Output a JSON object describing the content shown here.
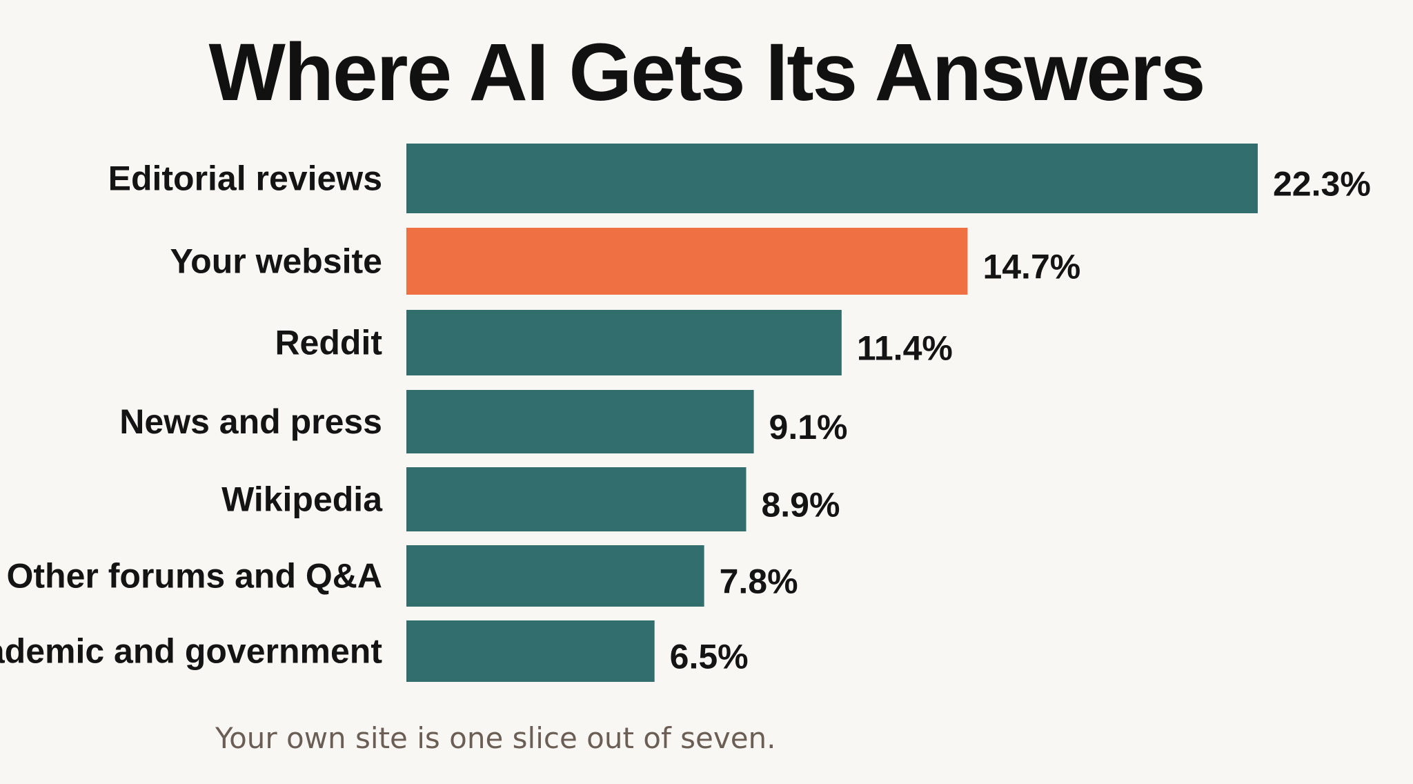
{
  "chart_data": {
    "type": "bar",
    "orientation": "horizontal",
    "title": "Where AI Gets Its Answers",
    "categories": [
      "Editorial reviews",
      "Your website",
      "Reddit",
      "News and press",
      "Wikipedia",
      "Other forums and Q&A",
      "Academic and government"
    ],
    "values": [
      22.3,
      14.7,
      11.4,
      9.1,
      8.9,
      7.8,
      6.5
    ],
    "value_labels": [
      "22.3%",
      "14.7%",
      "11.4%",
      "9.1%",
      "8.9%",
      "7.8%",
      "6.5%"
    ],
    "unit": "%",
    "highlight_index": 1,
    "colors": {
      "default": "#336e6e",
      "highlight": "#ef7043"
    },
    "grid": false,
    "legend": "none",
    "xlim": [
      0,
      22.3
    ]
  },
  "caption": "Your own site is one slice out of seven."
}
